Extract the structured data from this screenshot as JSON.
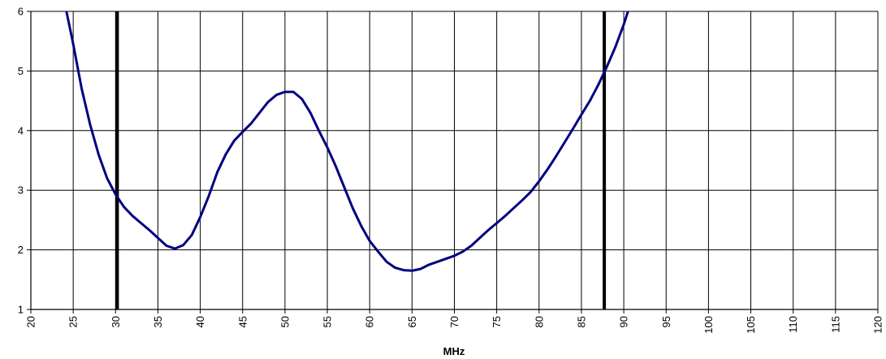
{
  "chart_data": {
    "type": "line",
    "title": "",
    "xlabel": "MHz",
    "ylabel": "",
    "xlim": [
      20,
      120
    ],
    "ylim": [
      1,
      6
    ],
    "x_ticks": [
      20,
      25,
      30,
      35,
      40,
      45,
      50,
      55,
      60,
      65,
      70,
      75,
      80,
      85,
      90,
      95,
      100,
      105,
      110,
      115,
      120
    ],
    "y_ticks": [
      1,
      2,
      3,
      4,
      5,
      6
    ],
    "grid": true,
    "legend": "none",
    "series": [
      {
        "color": "#000080",
        "points": [
          [
            24.2,
            6.0
          ],
          [
            25,
            5.45
          ],
          [
            26,
            4.7
          ],
          [
            27,
            4.1
          ],
          [
            28,
            3.6
          ],
          [
            29,
            3.2
          ],
          [
            30,
            2.93
          ],
          [
            31,
            2.72
          ],
          [
            32,
            2.57
          ],
          [
            33,
            2.45
          ],
          [
            34,
            2.33
          ],
          [
            35,
            2.2
          ],
          [
            36,
            2.07
          ],
          [
            37,
            2.02
          ],
          [
            38,
            2.08
          ],
          [
            39,
            2.25
          ],
          [
            40,
            2.55
          ],
          [
            41,
            2.9
          ],
          [
            42,
            3.3
          ],
          [
            43,
            3.6
          ],
          [
            44,
            3.83
          ],
          [
            45,
            3.98
          ],
          [
            46,
            4.12
          ],
          [
            47,
            4.3
          ],
          [
            48,
            4.48
          ],
          [
            49,
            4.6
          ],
          [
            50,
            4.65
          ],
          [
            51,
            4.65
          ],
          [
            52,
            4.53
          ],
          [
            53,
            4.3
          ],
          [
            54,
            4.0
          ],
          [
            55,
            3.72
          ],
          [
            56,
            3.4
          ],
          [
            57,
            3.05
          ],
          [
            58,
            2.7
          ],
          [
            59,
            2.4
          ],
          [
            60,
            2.15
          ],
          [
            61,
            1.97
          ],
          [
            62,
            1.8
          ],
          [
            63,
            1.7
          ],
          [
            64,
            1.66
          ],
          [
            65,
            1.65
          ],
          [
            66,
            1.68
          ],
          [
            67,
            1.75
          ],
          [
            68,
            1.8
          ],
          [
            69,
            1.85
          ],
          [
            70,
            1.9
          ],
          [
            71,
            1.97
          ],
          [
            72,
            2.07
          ],
          [
            73,
            2.2
          ],
          [
            74,
            2.33
          ],
          [
            75,
            2.45
          ],
          [
            76,
            2.57
          ],
          [
            77,
            2.7
          ],
          [
            78,
            2.83
          ],
          [
            79,
            2.97
          ],
          [
            80,
            3.15
          ],
          [
            81,
            3.35
          ],
          [
            82,
            3.57
          ],
          [
            83,
            3.8
          ],
          [
            84,
            4.03
          ],
          [
            85,
            4.27
          ],
          [
            86,
            4.5
          ],
          [
            87,
            4.77
          ],
          [
            88,
            5.07
          ],
          [
            89,
            5.4
          ],
          [
            90,
            5.78
          ],
          [
            90.5,
            6.0
          ]
        ]
      }
    ],
    "markers": [
      {
        "x": 30.2,
        "color": "#000000"
      },
      {
        "x": 87.7,
        "color": "#000000"
      }
    ]
  }
}
